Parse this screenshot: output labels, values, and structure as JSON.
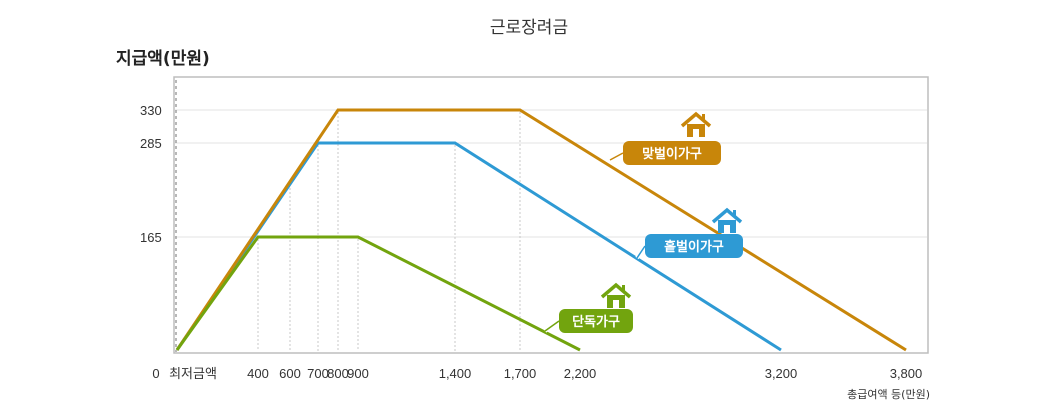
{
  "chart_data": {
    "type": "line",
    "title": "근로장려금",
    "ylabel": "지급액(만원)",
    "xlabel": "총급여액 등(만원)",
    "origin_label": "0",
    "min_wage_label": "최저금액",
    "x_ticks": [
      {
        "value": 400,
        "label": "400"
      },
      {
        "value": 600,
        "label": "600"
      },
      {
        "value": 700,
        "label": "700"
      },
      {
        "value": 800,
        "label": "800"
      },
      {
        "value": 900,
        "label": "900"
      },
      {
        "value": 1400,
        "label": "1,400"
      },
      {
        "value": 1700,
        "label": "1,700"
      },
      {
        "value": 2200,
        "label": "2,200"
      },
      {
        "value": 3200,
        "label": "3,200"
      },
      {
        "value": 3800,
        "label": "3,800"
      }
    ],
    "y_ticks": [
      {
        "value": 0,
        "label": ""
      },
      {
        "value": 165,
        "label": "165"
      },
      {
        "value": 285,
        "label": "285"
      },
      {
        "value": 330,
        "label": "330"
      }
    ],
    "xlim": [
      -40,
      3880
    ],
    "ylim": [
      0,
      370
    ],
    "grid": true,
    "series": [
      {
        "name": "맞벌이가구",
        "color": "#c8860a",
        "points": [
          [
            0,
            0
          ],
          [
            800,
            330
          ],
          [
            1700,
            330
          ],
          [
            3800,
            0
          ]
        ]
      },
      {
        "name": "홑벌이가구",
        "color": "#2e9ad4",
        "points": [
          [
            0,
            0
          ],
          [
            700,
            285
          ],
          [
            1400,
            285
          ],
          [
            3200,
            0
          ]
        ]
      },
      {
        "name": "단독가구",
        "color": "#72a40e",
        "points": [
          [
            0,
            0
          ],
          [
            400,
            165
          ],
          [
            900,
            165
          ],
          [
            2200,
            0
          ]
        ]
      }
    ]
  }
}
